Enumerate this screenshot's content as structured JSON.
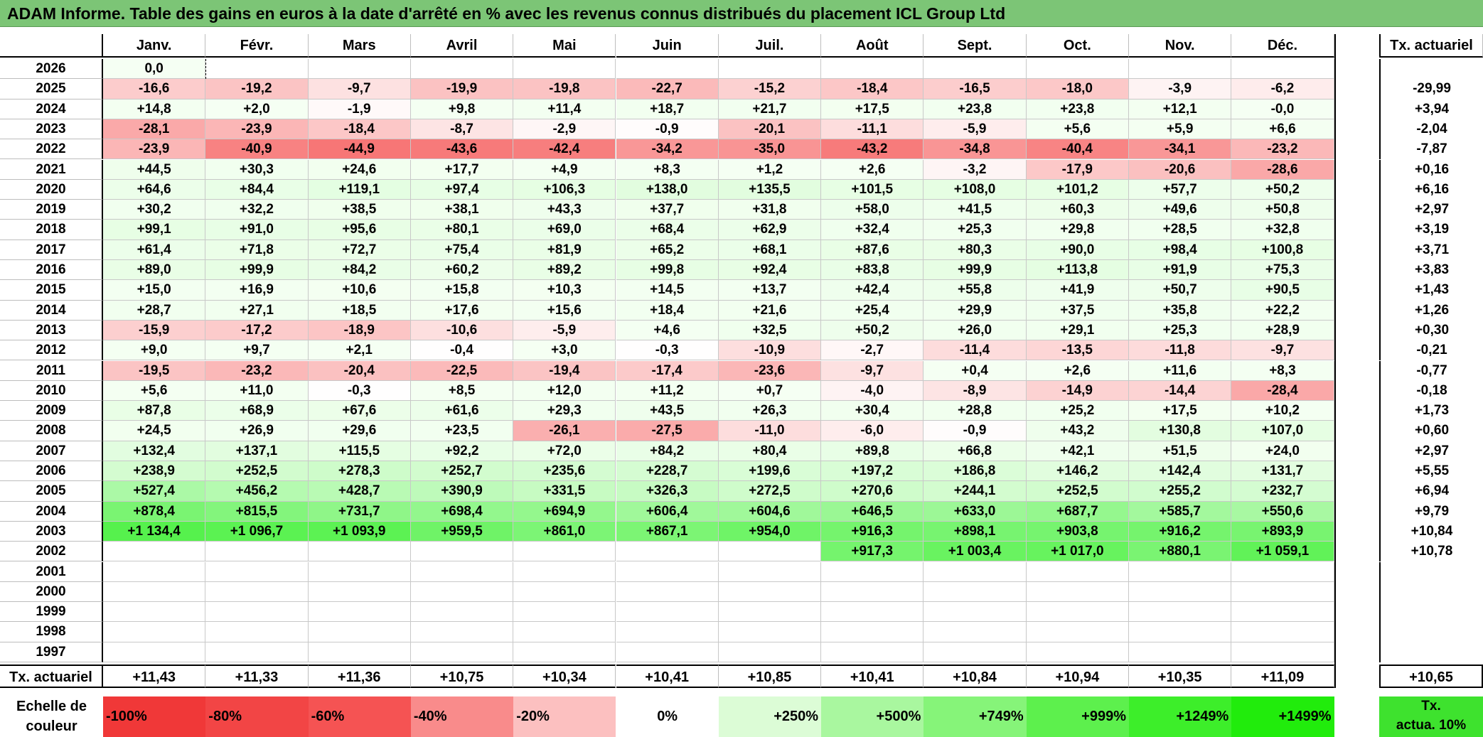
{
  "title": "ADAM Informe. Table des gains en euros à la date d'arrêté en % avec les revenus connus distribués du placement ICL Group Ltd",
  "corner_label": "",
  "months": [
    "Janv.",
    "Févr.",
    "Mars",
    "Avril",
    "Mai",
    "Juin",
    "Juil.",
    "Août",
    "Sept.",
    "Oct.",
    "Nov.",
    "Déc."
  ],
  "actuarial_header": "Tx. actuariel",
  "rows": [
    {
      "year": "2026",
      "values": [
        "0,0",
        "",
        "",
        "",
        "",
        "",
        "",
        "",
        "",
        "",
        "",
        ""
      ],
      "rate": ""
    },
    {
      "year": "2025",
      "values": [
        "-16,6",
        "-19,2",
        "-9,7",
        "-19,9",
        "-19,8",
        "-22,7",
        "-15,2",
        "-18,4",
        "-16,5",
        "-18,0",
        "-3,9",
        "-6,2"
      ],
      "rate": "-29,99"
    },
    {
      "year": "2024",
      "values": [
        "+14,8",
        "+2,0",
        "-1,9",
        "+9,8",
        "+11,4",
        "+18,7",
        "+21,7",
        "+17,5",
        "+23,8",
        "+23,8",
        "+12,1",
        "-0,0"
      ],
      "rate": "+3,94"
    },
    {
      "year": "2023",
      "values": [
        "-28,1",
        "-23,9",
        "-18,4",
        "-8,7",
        "-2,9",
        "-0,9",
        "-20,1",
        "-11,1",
        "-5,9",
        "+5,6",
        "+5,9",
        "+6,6"
      ],
      "rate": "-2,04"
    },
    {
      "year": "2022",
      "values": [
        "-23,9",
        "-40,9",
        "-44,9",
        "-43,6",
        "-42,4",
        "-34,2",
        "-35,0",
        "-43,2",
        "-34,8",
        "-40,4",
        "-34,1",
        "-23,2"
      ],
      "rate": "-7,87"
    },
    {
      "year": "2021",
      "values": [
        "+44,5",
        "+30,3",
        "+24,6",
        "+17,7",
        "+4,9",
        "+8,3",
        "+1,2",
        "+2,6",
        "-3,2",
        "-17,9",
        "-20,6",
        "-28,6"
      ],
      "rate": "+0,16"
    },
    {
      "year": "2020",
      "values": [
        "+64,6",
        "+84,4",
        "+119,1",
        "+97,4",
        "+106,3",
        "+138,0",
        "+135,5",
        "+101,5",
        "+108,0",
        "+101,2",
        "+57,7",
        "+50,2"
      ],
      "rate": "+6,16"
    },
    {
      "year": "2019",
      "values": [
        "+30,2",
        "+32,2",
        "+38,5",
        "+38,1",
        "+43,3",
        "+37,7",
        "+31,8",
        "+58,0",
        "+41,5",
        "+60,3",
        "+49,6",
        "+50,8"
      ],
      "rate": "+2,97"
    },
    {
      "year": "2018",
      "values": [
        "+99,1",
        "+91,0",
        "+95,6",
        "+80,1",
        "+69,0",
        "+68,4",
        "+62,9",
        "+32,4",
        "+25,3",
        "+29,8",
        "+28,5",
        "+32,8"
      ],
      "rate": "+3,19"
    },
    {
      "year": "2017",
      "values": [
        "+61,4",
        "+71,8",
        "+72,7",
        "+75,4",
        "+81,9",
        "+65,2",
        "+68,1",
        "+87,6",
        "+80,3",
        "+90,0",
        "+98,4",
        "+100,8"
      ],
      "rate": "+3,71"
    },
    {
      "year": "2016",
      "values": [
        "+89,0",
        "+99,9",
        "+84,2",
        "+60,2",
        "+89,2",
        "+99,8",
        "+92,4",
        "+83,8",
        "+99,9",
        "+113,8",
        "+91,9",
        "+75,3"
      ],
      "rate": "+3,83"
    },
    {
      "year": "2015",
      "values": [
        "+15,0",
        "+16,9",
        "+10,6",
        "+15,8",
        "+10,3",
        "+14,5",
        "+13,7",
        "+42,4",
        "+55,8",
        "+41,9",
        "+50,7",
        "+90,5"
      ],
      "rate": "+1,43"
    },
    {
      "year": "2014",
      "values": [
        "+28,7",
        "+27,1",
        "+18,5",
        "+17,6",
        "+15,6",
        "+18,4",
        "+21,6",
        "+25,4",
        "+29,9",
        "+37,5",
        "+35,8",
        "+22,2"
      ],
      "rate": "+1,26"
    },
    {
      "year": "2013",
      "values": [
        "-15,9",
        "-17,2",
        "-18,9",
        "-10,6",
        "-5,9",
        "+4,6",
        "+32,5",
        "+50,2",
        "+26,0",
        "+29,1",
        "+25,3",
        "+28,9"
      ],
      "rate": "+0,30"
    },
    {
      "year": "2012",
      "values": [
        "+9,0",
        "+9,7",
        "+2,1",
        "-0,4",
        "+3,0",
        "-0,3",
        "-10,9",
        "-2,7",
        "-11,4",
        "-13,5",
        "-11,8",
        "-9,7"
      ],
      "rate": "-0,21"
    },
    {
      "year": "2011",
      "values": [
        "-19,5",
        "-23,2",
        "-20,4",
        "-22,5",
        "-19,4",
        "-17,4",
        "-23,6",
        "-9,7",
        "+0,4",
        "+2,6",
        "+11,6",
        "+8,3"
      ],
      "rate": "-0,77"
    },
    {
      "year": "2010",
      "values": [
        "+5,6",
        "+11,0",
        "-0,3",
        "+8,5",
        "+12,0",
        "+11,2",
        "+0,7",
        "-4,0",
        "-8,9",
        "-14,9",
        "-14,4",
        "-28,4"
      ],
      "rate": "-0,18"
    },
    {
      "year": "2009",
      "values": [
        "+87,8",
        "+68,9",
        "+67,6",
        "+61,6",
        "+29,3",
        "+43,5",
        "+26,3",
        "+30,4",
        "+28,8",
        "+25,2",
        "+17,5",
        "+10,2"
      ],
      "rate": "+1,73"
    },
    {
      "year": "2008",
      "values": [
        "+24,5",
        "+26,9",
        "+29,6",
        "+23,5",
        "-26,1",
        "-27,5",
        "-11,0",
        "-6,0",
        "-0,9",
        "+43,2",
        "+130,8",
        "+107,0"
      ],
      "rate": "+0,60"
    },
    {
      "year": "2007",
      "values": [
        "+132,4",
        "+137,1",
        "+115,5",
        "+92,2",
        "+72,0",
        "+84,2",
        "+80,4",
        "+89,8",
        "+66,8",
        "+42,1",
        "+51,5",
        "+24,0"
      ],
      "rate": "+2,97"
    },
    {
      "year": "2006",
      "values": [
        "+238,9",
        "+252,5",
        "+278,3",
        "+252,7",
        "+235,6",
        "+228,7",
        "+199,6",
        "+197,2",
        "+186,8",
        "+146,2",
        "+142,4",
        "+131,7"
      ],
      "rate": "+5,55"
    },
    {
      "year": "2005",
      "values": [
        "+527,4",
        "+456,2",
        "+428,7",
        "+390,9",
        "+331,5",
        "+326,3",
        "+272,5",
        "+270,6",
        "+244,1",
        "+252,5",
        "+255,2",
        "+232,7"
      ],
      "rate": "+6,94"
    },
    {
      "year": "2004",
      "values": [
        "+878,4",
        "+815,5",
        "+731,7",
        "+698,4",
        "+694,9",
        "+606,4",
        "+604,6",
        "+646,5",
        "+633,0",
        "+687,7",
        "+585,7",
        "+550,6"
      ],
      "rate": "+9,79"
    },
    {
      "year": "2003",
      "values": [
        "+1 134,4",
        "+1 096,7",
        "+1 093,9",
        "+959,5",
        "+861,0",
        "+867,1",
        "+954,0",
        "+916,3",
        "+898,1",
        "+903,8",
        "+916,2",
        "+893,9"
      ],
      "rate": "+10,84"
    },
    {
      "year": "2002",
      "values": [
        "",
        "",
        "",
        "",
        "",
        "",
        "",
        "+917,3",
        "+1 003,4",
        "+1 017,0",
        "+880,1",
        "+1 059,1"
      ],
      "rate": "+10,78"
    },
    {
      "year": "2001",
      "values": [
        "",
        "",
        "",
        "",
        "",
        "",
        "",
        "",
        "",
        "",
        "",
        ""
      ],
      "rate": ""
    },
    {
      "year": "2000",
      "values": [
        "",
        "",
        "",
        "",
        "",
        "",
        "",
        "",
        "",
        "",
        "",
        ""
      ],
      "rate": ""
    },
    {
      "year": "1999",
      "values": [
        "",
        "",
        "",
        "",
        "",
        "",
        "",
        "",
        "",
        "",
        "",
        ""
      ],
      "rate": ""
    },
    {
      "year": "1998",
      "values": [
        "",
        "",
        "",
        "",
        "",
        "",
        "",
        "",
        "",
        "",
        "",
        ""
      ],
      "rate": ""
    },
    {
      "year": "1997",
      "values": [
        "",
        "",
        "",
        "",
        "",
        "",
        "",
        "",
        "",
        "",
        "",
        ""
      ],
      "rate": ""
    }
  ],
  "footer": {
    "label": "Tx. actuariel",
    "values": [
      "+11,43",
      "+11,33",
      "+11,36",
      "+10,75",
      "+10,34",
      "+10,41",
      "+10,85",
      "+10,41",
      "+10,84",
      "+10,94",
      "+10,35",
      "+11,09"
    ],
    "total": "+10,65"
  },
  "legend": {
    "label_line1": "Echelle de",
    "label_line2": "couleur",
    "items": [
      {
        "text": "-100%",
        "color": "#f03838",
        "align": "left"
      },
      {
        "text": "-80%",
        "color": "#f24545",
        "align": "left"
      },
      {
        "text": "-60%",
        "color": "#f55353",
        "align": "left"
      },
      {
        "text": "-40%",
        "color": "#f98b8b",
        "align": "left"
      },
      {
        "text": "-20%",
        "color": "#fcc0c0",
        "align": "left"
      },
      {
        "text": "0%",
        "color": "#ffffff",
        "align": "center"
      },
      {
        "text": "+250%",
        "color": "#dcfcd6",
        "align": "right"
      },
      {
        "text": "+500%",
        "color": "#a9f79f",
        "align": "right"
      },
      {
        "text": "+749%",
        "color": "#86f479",
        "align": "right"
      },
      {
        "text": "+999%",
        "color": "#5df04d",
        "align": "right"
      },
      {
        "text": "+1249%",
        "color": "#3dee2a",
        "align": "right"
      },
      {
        "text": "+1499%",
        "color": "#21ec0c",
        "align": "right"
      }
    ],
    "rate_box_line1": "Tx.",
    "rate_box_line2": "actua. 10%",
    "rate_box_color": "#3ee22e"
  }
}
